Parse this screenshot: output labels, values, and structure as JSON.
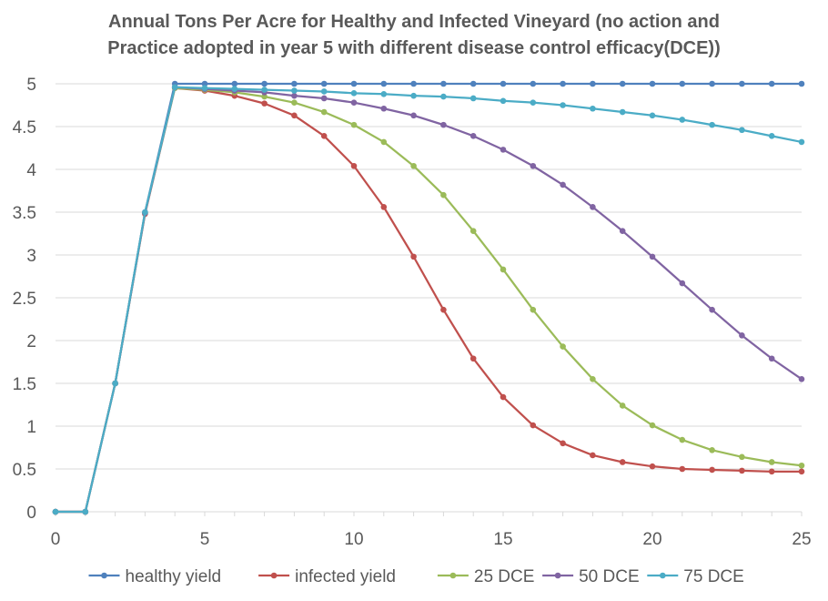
{
  "chart_data": {
    "type": "line",
    "title_lines": [
      "Annual Tons Per Acre for Healthy and Infected Vineyard (no action and",
      "Practice adopted in year 5 with different disease control efficacy(DCE))"
    ],
    "xlabel": "",
    "ylabel": "",
    "xlim": [
      0,
      25
    ],
    "ylim": [
      0,
      5
    ],
    "x_ticks": [
      "0",
      "5",
      "10",
      "15",
      "20",
      "25"
    ],
    "y_ticks": [
      "0",
      "0.5",
      "1",
      "1.5",
      "2",
      "2.5",
      "3",
      "3.5",
      "4",
      "4.5",
      "5"
    ],
    "grid": "horizontal",
    "legend_position": "bottom",
    "x": [
      0,
      1,
      2,
      3,
      4,
      5,
      6,
      7,
      8,
      9,
      10,
      11,
      12,
      13,
      14,
      15,
      16,
      17,
      18,
      19,
      20,
      21,
      22,
      23,
      24,
      25
    ],
    "series": [
      {
        "name": "healthy yield",
        "color": "#4f81bd",
        "values": [
          0,
          0,
          1.5,
          3.5,
          5,
          5,
          5,
          5,
          5,
          5,
          5,
          5,
          5,
          5,
          5,
          5,
          5,
          5,
          5,
          5,
          5,
          5,
          5,
          5,
          5,
          5
        ]
      },
      {
        "name": "infected yield",
        "color": "#c0504d",
        "values": [
          0,
          0,
          1.5,
          3.48,
          4.95,
          4.92,
          4.86,
          4.77,
          4.63,
          4.39,
          4.04,
          3.56,
          2.98,
          2.36,
          1.79,
          1.34,
          1.01,
          0.8,
          0.66,
          0.58,
          0.53,
          0.5,
          0.49,
          0.48,
          0.47,
          0.47
        ]
      },
      {
        "name": "25 DCE",
        "color": "#9bbb59",
        "values": [
          0,
          0,
          1.5,
          3.49,
          4.95,
          4.93,
          4.9,
          4.85,
          4.78,
          4.67,
          4.52,
          4.32,
          4.04,
          3.7,
          3.28,
          2.83,
          2.36,
          1.93,
          1.55,
          1.24,
          1.01,
          0.84,
          0.72,
          0.64,
          0.58,
          0.54
        ]
      },
      {
        "name": "50 DCE",
        "color": "#8064a2",
        "values": [
          0,
          0,
          1.5,
          3.49,
          4.96,
          4.94,
          4.92,
          4.9,
          4.86,
          4.83,
          4.78,
          4.71,
          4.63,
          4.52,
          4.39,
          4.23,
          4.04,
          3.82,
          3.56,
          3.28,
          2.98,
          2.67,
          2.36,
          2.06,
          1.79,
          1.55
        ]
      },
      {
        "name": "75 DCE",
        "color": "#4bacc6",
        "values": [
          0,
          0,
          1.5,
          3.5,
          4.96,
          4.95,
          4.94,
          4.93,
          4.92,
          4.91,
          4.89,
          4.88,
          4.86,
          4.85,
          4.83,
          4.8,
          4.78,
          4.75,
          4.71,
          4.67,
          4.63,
          4.58,
          4.52,
          4.46,
          4.39,
          4.32
        ]
      }
    ]
  }
}
